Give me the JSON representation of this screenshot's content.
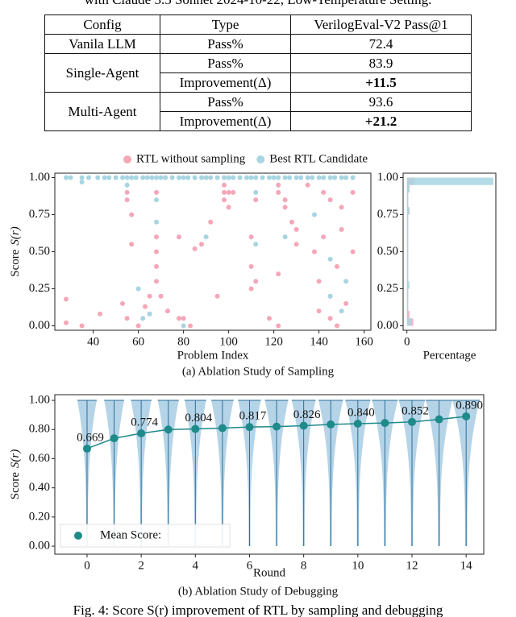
{
  "top_caption": "with Claude 3.5 Sonnet 2024-10-22, Low-Temperature Setting.",
  "table": {
    "header": [
      "Config",
      "Type",
      "VerilogEval-V2 Pass@1"
    ],
    "groups": [
      {
        "config": "Vanila LLM",
        "rows": [
          [
            "Pass%",
            "72.4"
          ]
        ]
      },
      {
        "config": "Single-Agent",
        "rows": [
          [
            "Pass%",
            "83.9"
          ],
          [
            "Improvement(Δ)",
            "+11.5"
          ]
        ]
      },
      {
        "config": "Multi-Agent",
        "rows": [
          [
            "Pass%",
            "93.6"
          ],
          [
            "Improvement(Δ)",
            "+21.2"
          ]
        ]
      }
    ]
  },
  "chart_data": [
    {
      "type": "scatter",
      "caption": "(a) Ablation Study of Sampling",
      "x_label": "Problem Index",
      "y_label": "Score",
      "y_label_math": "S(r)",
      "legend": "upper center",
      "xlim": [
        23,
        163
      ],
      "xticks": [
        40,
        60,
        80,
        100,
        120,
        140,
        160
      ],
      "ylim": [
        -0.03,
        1.03
      ],
      "yticks": [
        {
          "value": 0,
          "label": "0.00"
        },
        {
          "value": 0.25,
          "label": "0.25"
        },
        {
          "value": 0.5,
          "label": "0.50"
        },
        {
          "value": 0.75,
          "label": "0.75"
        },
        {
          "value": 1,
          "label": "1.00"
        }
      ],
      "series": [
        {
          "name": "RTL without sampling",
          "color": "#f4a7b9",
          "x": [
            28,
            28,
            35,
            43,
            53,
            55,
            55,
            55,
            57,
            57,
            60,
            63,
            65,
            68,
            68,
            68,
            68,
            68,
            70,
            73,
            78,
            78,
            80,
            83,
            85,
            88,
            92,
            95,
            98,
            98,
            98,
            100,
            100,
            102,
            110,
            110,
            110,
            112,
            112,
            118,
            122,
            122,
            122,
            122,
            125,
            125,
            128,
            130,
            130,
            135,
            138,
            140,
            140,
            142,
            142,
            145,
            145,
            145,
            148,
            148,
            150,
            150,
            152,
            155,
            155
          ],
          "y": [
            0.18,
            0.02,
            0,
            0.08,
            0.15,
            0.85,
            0.9,
            0.05,
            0.75,
            0.55,
            0,
            0.13,
            0.2,
            0.4,
            0.3,
            0.5,
            0.6,
            0.9,
            0.2,
            0.1,
            0.6,
            0.05,
            0.05,
            0,
            0.52,
            0.55,
            0.7,
            0.2,
            0.95,
            0.9,
            0.85,
            0.8,
            0.9,
            0.9,
            0.6,
            0.4,
            0.25,
            0.3,
            0.85,
            0.05,
            0.95,
            0.9,
            0.35,
            0,
            0.8,
            0.85,
            0.7,
            0.55,
            0.65,
            0.95,
            0.5,
            0.3,
            0.1,
            0.9,
            0.6,
            0.85,
            0.2,
            0.05,
            0.4,
            0,
            0.8,
            0.65,
            0.15,
            0.9,
            0.5
          ]
        },
        {
          "name": "Best RTL Candidate",
          "color": "#a8d5e2",
          "x": [
            28,
            30,
            35,
            38,
            42,
            45,
            47,
            50,
            53,
            55,
            57,
            59,
            62,
            64,
            66,
            68,
            70,
            72,
            75,
            78,
            80,
            82,
            85,
            88,
            90,
            92,
            95,
            98,
            100,
            102,
            105,
            108,
            110,
            112,
            115,
            118,
            120,
            122,
            125,
            127,
            130,
            132,
            135,
            137,
            140,
            142,
            145,
            147,
            150,
            152,
            155,
            35,
            55,
            60,
            62,
            65,
            68,
            68,
            80,
            90,
            112,
            112,
            125,
            138,
            145,
            145,
            150,
            152
          ],
          "y": [
            1,
            1,
            1,
            1,
            1,
            1,
            1,
            1,
            1,
            1,
            1,
            1,
            1,
            1,
            1,
            1,
            1,
            1,
            1,
            1,
            1,
            1,
            1,
            1,
            1,
            1,
            1,
            1,
            1,
            1,
            1,
            1,
            1,
            1,
            1,
            1,
            1,
            1,
            1,
            1,
            1,
            1,
            1,
            1,
            1,
            1,
            1,
            1,
            1,
            1,
            1,
            0.97,
            0.95,
            0.25,
            0.05,
            0.08,
            0.7,
            0.85,
            0,
            0.6,
            0.55,
            0.9,
            0.6,
            0.75,
            0.45,
            0.2,
            0.1,
            0.3
          ]
        }
      ]
    },
    {
      "type": "histogram",
      "x_label": "Percentage",
      "orientation": "horizontal",
      "xlim": [
        -3,
        70
      ],
      "xticks": [
        0
      ],
      "ylim": [
        -0.03,
        1.03
      ],
      "yticks": [
        {
          "value": 0,
          "label": "0.00"
        },
        {
          "value": 0.25,
          "label": "0.25"
        },
        {
          "value": 0.5,
          "label": "0.50"
        },
        {
          "value": 0.75,
          "label": "0.75"
        },
        {
          "value": 1,
          "label": "1.00"
        }
      ],
      "bins": [
        0,
        0.05,
        0.1,
        0.15,
        0.2,
        0.25,
        0.3,
        0.35,
        0.4,
        0.45,
        0.5,
        0.55,
        0.6,
        0.65,
        0.7,
        0.75,
        0.8,
        0.85,
        0.9,
        0.95,
        1.0
      ],
      "series": [
        {
          "name": "RTL without sampling",
          "color": "#f4a7b9",
          "values": [
            5,
            2,
            1,
            1,
            1,
            1,
            1,
            1,
            1,
            1,
            1,
            1,
            1,
            1,
            1,
            2,
            1,
            1,
            2,
            6
          ]
        },
        {
          "name": "Best RTL Candidate",
          "color": "#a8d5e2",
          "values": [
            4,
            1,
            1,
            1,
            1,
            2,
            1,
            1,
            1,
            1,
            1,
            1,
            1,
            1,
            1,
            2,
            1,
            1,
            2,
            68
          ]
        }
      ]
    },
    {
      "type": "violin-line",
      "caption": "(b) Ablation Study of Debugging",
      "x_label": "Round",
      "y_label": "Score",
      "y_label_math": "S(r)",
      "legend": "lower left",
      "violin_color": "#a9cde3",
      "xlim": [
        -1.19,
        14.65
      ],
      "xticks": [
        0,
        2,
        4,
        6,
        8,
        10,
        12,
        14
      ],
      "ylim": [
        -0.055,
        1.039
      ],
      "yticks": [
        {
          "value": 0,
          "label": "0.00"
        },
        {
          "value": 0.2,
          "label": "0.20"
        },
        {
          "value": 0.4,
          "label": "0.40"
        },
        {
          "value": 0.6,
          "label": "0.60"
        },
        {
          "value": 0.8,
          "label": "0.80"
        },
        {
          "value": 1,
          "label": "1.00"
        }
      ],
      "x": [
        0,
        1,
        2,
        3,
        4,
        5,
        6,
        7,
        8,
        9,
        10,
        11,
        12,
        13,
        14
      ],
      "series": [
        {
          "name": "Mean Score:",
          "color": "#1f8a8a",
          "values": [
            0.669,
            0.74,
            0.774,
            0.8,
            0.804,
            0.81,
            0.817,
            0.82,
            0.826,
            0.835,
            0.84,
            0.845,
            0.852,
            0.87,
            0.89
          ],
          "value_labels": [
            "0.669",
            null,
            "0.774",
            null,
            "0.804",
            null,
            "0.817",
            null,
            "0.826",
            null,
            "0.840",
            null,
            "0.852",
            null,
            "0.890"
          ]
        }
      ]
    }
  ],
  "bottom_caption": "Fig. 4: Score S(r) improvement of RTL by sampling and debugging"
}
